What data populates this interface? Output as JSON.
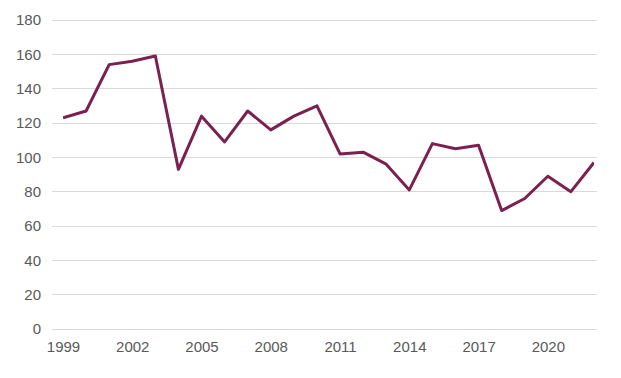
{
  "chart_data": {
    "type": "line",
    "x": [
      1999,
      2000,
      2001,
      2002,
      2003,
      2004,
      2005,
      2006,
      2007,
      2008,
      2009,
      2010,
      2011,
      2012,
      2013,
      2014,
      2015,
      2016,
      2017,
      2018,
      2019,
      2020,
      2021,
      2022
    ],
    "values": [
      123,
      127,
      154,
      156,
      159,
      93,
      124,
      109,
      127,
      116,
      124,
      130,
      102,
      103,
      96,
      81,
      108,
      105,
      107,
      69,
      76,
      89,
      80,
      97
    ],
    "color": "#7b2150",
    "xlim": [
      1999,
      2022
    ],
    "xticks": [
      1999,
      2002,
      2005,
      2008,
      2011,
      2014,
      2017,
      2020
    ],
    "ylim": [
      0,
      180
    ],
    "yticks": [
      0,
      20,
      40,
      60,
      80,
      100,
      120,
      140,
      160,
      180
    ],
    "grid": true
  }
}
